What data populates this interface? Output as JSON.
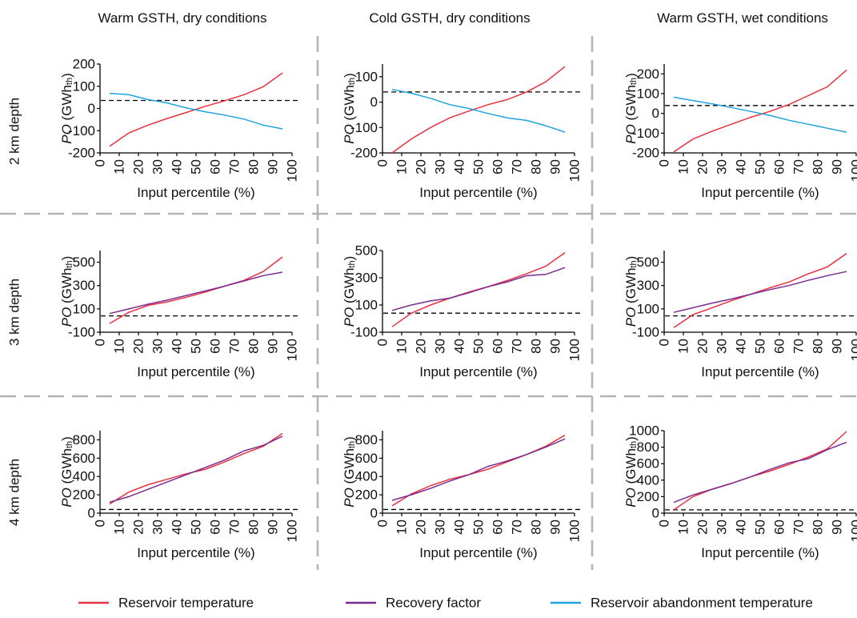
{
  "figure": {
    "column_titles": [
      "Warm GSTH, dry conditions",
      "Cold GSTH, dry conditions",
      "Warm GSTH, wet conditions"
    ],
    "row_labels": [
      "2 km depth",
      "3 km depth",
      "4 km depth"
    ],
    "legend": [
      {
        "label": "Reservoir temperature",
        "color": "#e8313f"
      },
      {
        "label": "Recovery factor",
        "color": "#7b2b8f"
      },
      {
        "label": "Reservoir abandonment temperature",
        "color": "#1fa3df"
      }
    ],
    "colors": {
      "grid_separator": "#b3b3b3",
      "threshold_line": "#000000",
      "axis": "#000000"
    }
  },
  "chart_data": [
    {
      "type": "line",
      "row": 0,
      "col": 0,
      "xlabel": "Input percentile (%)",
      "ylabel": "PO (GWhth)",
      "x": [
        5,
        15,
        25,
        35,
        45,
        55,
        65,
        75,
        85,
        95
      ],
      "xlim": [
        0,
        100
      ],
      "xticks": [
        0,
        10,
        20,
        30,
        40,
        50,
        60,
        70,
        80,
        90,
        100
      ],
      "ylim": [
        -200,
        200
      ],
      "yticks": [
        -200,
        -100,
        0,
        100,
        200
      ],
      "threshold": 36,
      "series": [
        {
          "name": "Reservoir temperature",
          "values": [
            -170,
            -110,
            -75,
            -45,
            -18,
            10,
            35,
            62,
            98,
            160
          ]
        },
        {
          "name": "Reservoir abandonment temperature",
          "values": [
            68,
            62,
            40,
            25,
            2,
            -15,
            -30,
            -48,
            -75,
            -92
          ]
        }
      ]
    },
    {
      "type": "line",
      "row": 0,
      "col": 1,
      "xlabel": "Input percentile (%)",
      "ylabel": "PO (GWhth)",
      "x": [
        5,
        15,
        25,
        35,
        45,
        55,
        65,
        75,
        85,
        95
      ],
      "xlim": [
        0,
        100
      ],
      "xticks": [
        0,
        10,
        20,
        30,
        40,
        50,
        60,
        70,
        80,
        90,
        100
      ],
      "ylim": [
        -200,
        150
      ],
      "yticks": [
        -200,
        -100,
        0,
        100
      ],
      "threshold": 40,
      "series": [
        {
          "name": "Reservoir temperature",
          "values": [
            -200,
            -145,
            -100,
            -62,
            -35,
            -10,
            10,
            40,
            80,
            140
          ]
        },
        {
          "name": "Reservoir abandonment temperature",
          "values": [
            50,
            35,
            15,
            -10,
            -25,
            -45,
            -62,
            -72,
            -93,
            -118
          ]
        }
      ]
    },
    {
      "type": "line",
      "row": 0,
      "col": 2,
      "xlabel": "Input percentile (%)",
      "ylabel": "PO (GWhth)",
      "x": [
        5,
        15,
        25,
        35,
        45,
        55,
        65,
        75,
        85,
        95
      ],
      "xlim": [
        0,
        100
      ],
      "xticks": [
        0,
        10,
        20,
        30,
        40,
        50,
        60,
        70,
        80,
        90,
        100
      ],
      "ylim": [
        -200,
        250
      ],
      "yticks": [
        -200,
        -100,
        0,
        100,
        200
      ],
      "threshold": 40,
      "series": [
        {
          "name": "Reservoir temperature",
          "values": [
            -195,
            -130,
            -90,
            -55,
            -20,
            10,
            45,
            90,
            135,
            220
          ]
        },
        {
          "name": "Reservoir abandonment temperature",
          "values": [
            82,
            65,
            48,
            30,
            10,
            -10,
            -35,
            -55,
            -75,
            -95
          ]
        }
      ]
    },
    {
      "type": "line",
      "row": 1,
      "col": 0,
      "xlabel": "Input percentile (%)",
      "ylabel": "PO (GWhth)",
      "x": [
        5,
        15,
        25,
        35,
        45,
        55,
        65,
        75,
        85,
        95
      ],
      "xlim": [
        0,
        100
      ],
      "xticks": [
        0,
        10,
        20,
        30,
        40,
        50,
        60,
        70,
        80,
        90,
        100
      ],
      "ylim": [
        -100,
        600
      ],
      "yticks": [
        -100,
        100,
        300,
        500
      ],
      "threshold": 40,
      "series": [
        {
          "name": "Reservoir temperature",
          "values": [
            -25,
            70,
            130,
            160,
            200,
            245,
            295,
            345,
            420,
            545
          ]
        },
        {
          "name": "Recovery factor",
          "values": [
            60,
            100,
            140,
            175,
            215,
            255,
            295,
            340,
            385,
            415
          ]
        }
      ]
    },
    {
      "type": "line",
      "row": 1,
      "col": 1,
      "xlabel": "Input percentile (%)",
      "ylabel": "PO (GWhth)",
      "x": [
        5,
        15,
        25,
        35,
        45,
        55,
        65,
        75,
        85,
        95
      ],
      "xlim": [
        0,
        100
      ],
      "xticks": [
        0,
        10,
        20,
        30,
        40,
        50,
        60,
        70,
        80,
        90,
        100
      ],
      "ylim": [
        -100,
        500
      ],
      "yticks": [
        -100,
        100,
        300,
        500
      ],
      "threshold": 40,
      "series": [
        {
          "name": "Reservoir temperature",
          "values": [
            -60,
            40,
            100,
            150,
            195,
            235,
            280,
            330,
            385,
            485
          ]
        },
        {
          "name": "Recovery factor",
          "values": [
            60,
            100,
            130,
            150,
            190,
            235,
            270,
            315,
            325,
            375
          ]
        }
      ]
    },
    {
      "type": "line",
      "row": 1,
      "col": 2,
      "xlabel": "Input percentile (%)",
      "ylabel": "PO (GWhth)",
      "x": [
        5,
        15,
        25,
        35,
        45,
        55,
        65,
        75,
        85,
        95
      ],
      "xlim": [
        0,
        100
      ],
      "xticks": [
        0,
        10,
        20,
        30,
        40,
        50,
        60,
        70,
        80,
        90,
        100
      ],
      "ylim": [
        -100,
        600
      ],
      "yticks": [
        -100,
        100,
        300,
        500
      ],
      "threshold": 40,
      "series": [
        {
          "name": "Reservoir temperature",
          "values": [
            -60,
            50,
            110,
            170,
            225,
            280,
            330,
            400,
            460,
            575
          ]
        },
        {
          "name": "Recovery factor",
          "values": [
            70,
            110,
            150,
            185,
            225,
            265,
            300,
            345,
            385,
            420
          ]
        }
      ]
    },
    {
      "type": "line",
      "row": 2,
      "col": 0,
      "xlabel": "Input percentile (%)",
      "ylabel": "PO (GWhth)",
      "x": [
        5,
        15,
        25,
        35,
        45,
        55,
        65,
        75,
        85,
        95
      ],
      "xlim": [
        0,
        100
      ],
      "xticks": [
        0,
        10,
        20,
        30,
        40,
        50,
        60,
        70,
        80,
        90,
        100
      ],
      "ylim": [
        0,
        900
      ],
      "yticks": [
        0,
        200,
        400,
        600,
        800
      ],
      "threshold": 40,
      "series": [
        {
          "name": "Reservoir temperature",
          "values": [
            100,
            230,
            310,
            370,
            430,
            480,
            560,
            650,
            730,
            870
          ]
        },
        {
          "name": "Recovery factor",
          "values": [
            120,
            180,
            260,
            340,
            420,
            500,
            580,
            680,
            740,
            840
          ]
        }
      ]
    },
    {
      "type": "line",
      "row": 2,
      "col": 1,
      "xlabel": "Input percentile (%)",
      "ylabel": "PO (GWhth)",
      "x": [
        5,
        15,
        25,
        35,
        45,
        55,
        65,
        75,
        85,
        95
      ],
      "xlim": [
        0,
        100
      ],
      "xticks": [
        0,
        10,
        20,
        30,
        40,
        50,
        60,
        70,
        80,
        90,
        100
      ],
      "ylim": [
        0,
        900
      ],
      "yticks": [
        0,
        200,
        400,
        600,
        800
      ],
      "threshold": 40,
      "series": [
        {
          "name": "Reservoir temperature",
          "values": [
            80,
            210,
            300,
            370,
            420,
            480,
            560,
            640,
            730,
            850
          ]
        },
        {
          "name": "Recovery factor",
          "values": [
            140,
            200,
            270,
            350,
            420,
            510,
            570,
            640,
            720,
            810
          ]
        }
      ]
    },
    {
      "type": "line",
      "row": 2,
      "col": 2,
      "xlabel": "Input percentile (%)",
      "ylabel": "PO (GWhth)",
      "x": [
        5,
        15,
        25,
        35,
        45,
        55,
        65,
        75,
        85,
        95
      ],
      "xlim": [
        0,
        100
      ],
      "xticks": [
        0,
        10,
        20,
        30,
        40,
        50,
        60,
        70,
        80,
        90,
        100
      ],
      "ylim": [
        0,
        1000
      ],
      "yticks": [
        0,
        200,
        400,
        600,
        800,
        1000
      ],
      "threshold": 40,
      "series": [
        {
          "name": "Reservoir temperature",
          "values": [
            40,
            200,
            290,
            360,
            440,
            510,
            590,
            680,
            780,
            990
          ]
        },
        {
          "name": "Recovery factor",
          "values": [
            130,
            220,
            290,
            360,
            440,
            530,
            610,
            660,
            770,
            860
          ]
        }
      ]
    }
  ]
}
